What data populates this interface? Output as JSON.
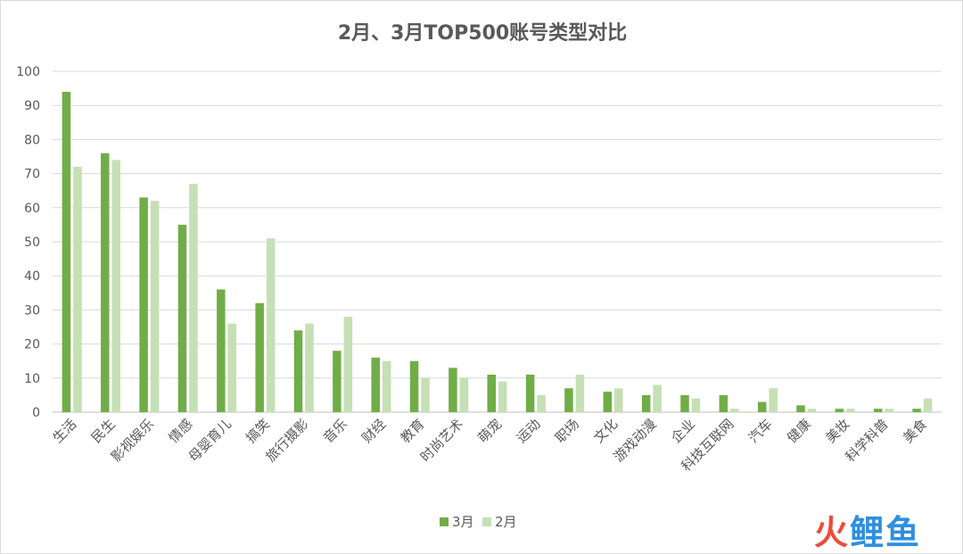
{
  "chart_data": {
    "type": "bar",
    "title": "2月、3月TOP500账号类型对比",
    "categories": [
      "生活",
      "民生",
      "影视娱乐",
      "情感",
      "母婴育儿",
      "搞笑",
      "旅行摄影",
      "音乐",
      "财经",
      "教育",
      "时尚艺术",
      "萌宠",
      "运动",
      "职场",
      "文化",
      "游戏动漫",
      "企业",
      "科技互联网",
      "汽车",
      "健康",
      "美妆",
      "科学科普",
      "美食"
    ],
    "series": [
      {
        "name": "3月",
        "color": "#70ad47",
        "values": [
          94,
          76,
          63,
          55,
          36,
          32,
          24,
          18,
          16,
          15,
          13,
          11,
          11,
          7,
          6,
          5,
          5,
          5,
          3,
          2,
          1,
          1,
          1
        ]
      },
      {
        "name": "2月",
        "color": "#c5e0b4",
        "values": [
          72,
          74,
          62,
          67,
          26,
          51,
          26,
          28,
          15,
          10,
          10,
          9,
          5,
          11,
          7,
          8,
          4,
          1,
          7,
          1,
          1,
          1,
          4
        ]
      }
    ],
    "yticks": [
      0,
      10,
      20,
      30,
      40,
      50,
      60,
      70,
      80,
      90,
      100
    ],
    "ylim": [
      0,
      100
    ],
    "grid": true,
    "legend_position": "bottom"
  },
  "watermark": {
    "part1": "火",
    "part2": "鲤鱼",
    "color1": "#f04a3c",
    "color2": "#2f8fe0"
  }
}
